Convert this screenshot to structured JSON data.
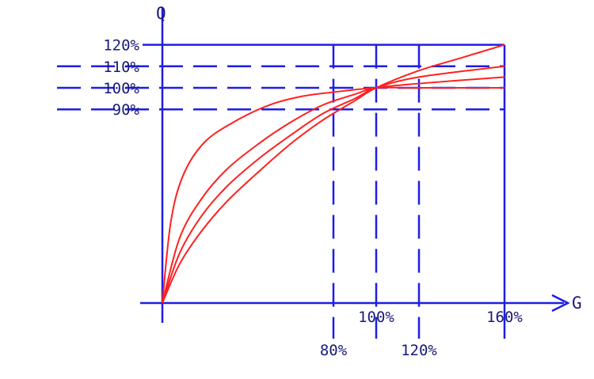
{
  "chart_data": {
    "type": "line",
    "x_axis_name": "G",
    "y_axis_name": "Q",
    "x_ticks": [
      {
        "value": 80,
        "label": "80%"
      },
      {
        "value": 100,
        "label": "100%"
      },
      {
        "value": 120,
        "label": "120%"
      },
      {
        "value": 160,
        "label": "160%"
      }
    ],
    "y_ticks": [
      {
        "value": 90,
        "label": "90%"
      },
      {
        "value": 100,
        "label": "100%"
      },
      {
        "value": 110,
        "label": "110%"
      },
      {
        "value": 120,
        "label": "120%"
      }
    ],
    "xlim": [
      0,
      160
    ],
    "ylim": [
      0,
      120
    ],
    "series": [
      {
        "points": [
          [
            0,
            0
          ],
          [
            4,
            38
          ],
          [
            10,
            60
          ],
          [
            20,
            75
          ],
          [
            35,
            85
          ],
          [
            50,
            92
          ],
          [
            65,
            96
          ],
          [
            80,
            98
          ],
          [
            100,
            100
          ],
          [
            120,
            100
          ],
          [
            160,
            100
          ]
        ]
      },
      {
        "points": [
          [
            0,
            0
          ],
          [
            8,
            30
          ],
          [
            18,
            48
          ],
          [
            30,
            62
          ],
          [
            45,
            74
          ],
          [
            60,
            84
          ],
          [
            75,
            92
          ],
          [
            90,
            97
          ],
          [
            100,
            100
          ],
          [
            120,
            102
          ],
          [
            160,
            105
          ]
        ]
      },
      {
        "points": [
          [
            0,
            0
          ],
          [
            8,
            23
          ],
          [
            18,
            40
          ],
          [
            30,
            54
          ],
          [
            45,
            67
          ],
          [
            60,
            78
          ],
          [
            75,
            88
          ],
          [
            90,
            95
          ],
          [
            100,
            100
          ],
          [
            120,
            105
          ],
          [
            160,
            110
          ]
        ]
      },
      {
        "points": [
          [
            0,
            0
          ],
          [
            8,
            18
          ],
          [
            18,
            33
          ],
          [
            30,
            47
          ],
          [
            45,
            61
          ],
          [
            60,
            74
          ],
          [
            75,
            85
          ],
          [
            90,
            94
          ],
          [
            100,
            100
          ],
          [
            120,
            108
          ],
          [
            140,
            114
          ],
          [
            160,
            120
          ]
        ]
      }
    ],
    "colors": {
      "axes": "#1e1ee6",
      "curves": "#ff2020",
      "labels": "#1a1a7a"
    }
  }
}
